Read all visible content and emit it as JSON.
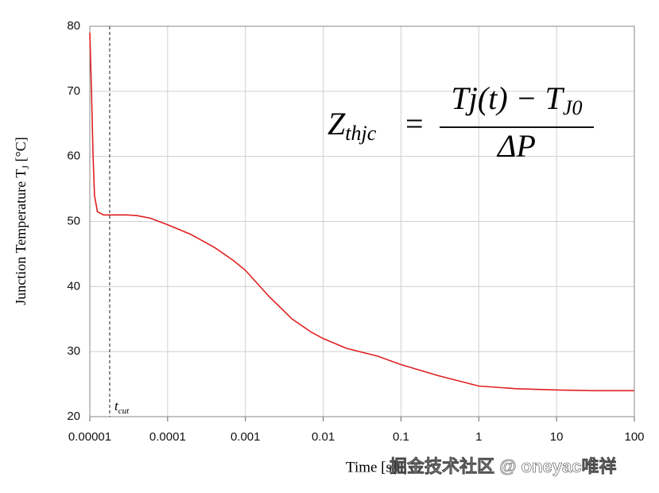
{
  "chart_data": {
    "type": "line",
    "x_label": "Time [s]",
    "y_label": {
      "text": "Junction Temperature T",
      "subscript": "J",
      "suffix": " [°C]"
    },
    "x": [
      1e-05,
      1.05e-05,
      1.1e-05,
      1.15e-05,
      1.25e-05,
      1.5e-05,
      2e-05,
      3e-05,
      4e-05,
      6e-05,
      0.0001,
      0.0002,
      0.0004,
      0.0007,
      0.001,
      0.002,
      0.004,
      0.007,
      0.01,
      0.02,
      0.05,
      0.1,
      0.3,
      1,
      3,
      10,
      30,
      100
    ],
    "series": [
      {
        "name": "Tj",
        "color": "#e02020",
        "values": [
          79,
          70,
          60,
          54,
          51.5,
          51,
          51,
          51,
          50.9,
          50.5,
          49.5,
          48,
          46,
          44,
          42.5,
          38.5,
          35,
          33,
          32,
          30.5,
          29.3,
          28,
          26.3,
          24.7,
          24.3,
          24.1,
          24,
          24
        ]
      }
    ],
    "log_x": true,
    "xlim": [
      1e-05,
      100
    ],
    "xticks": [
      1e-05,
      0.0001,
      0.001,
      0.01,
      0.1,
      1,
      10,
      100
    ],
    "ylim": [
      20,
      80
    ],
    "yticks": [
      20,
      30,
      40,
      50,
      60,
      70,
      80
    ],
    "grid": true,
    "cut_marker": {
      "x": 1.8e-05,
      "text": "t",
      "subscript": "cut"
    },
    "formula": {
      "lhs": "Z",
      "lhs_subscript": "thjc",
      "equals": "=",
      "numerator": "Tj(t) − T",
      "numerator_subscript": "J0",
      "denominator": "ΔP"
    },
    "watermark": "掘金技术社区 @ oneyac唯祥"
  }
}
